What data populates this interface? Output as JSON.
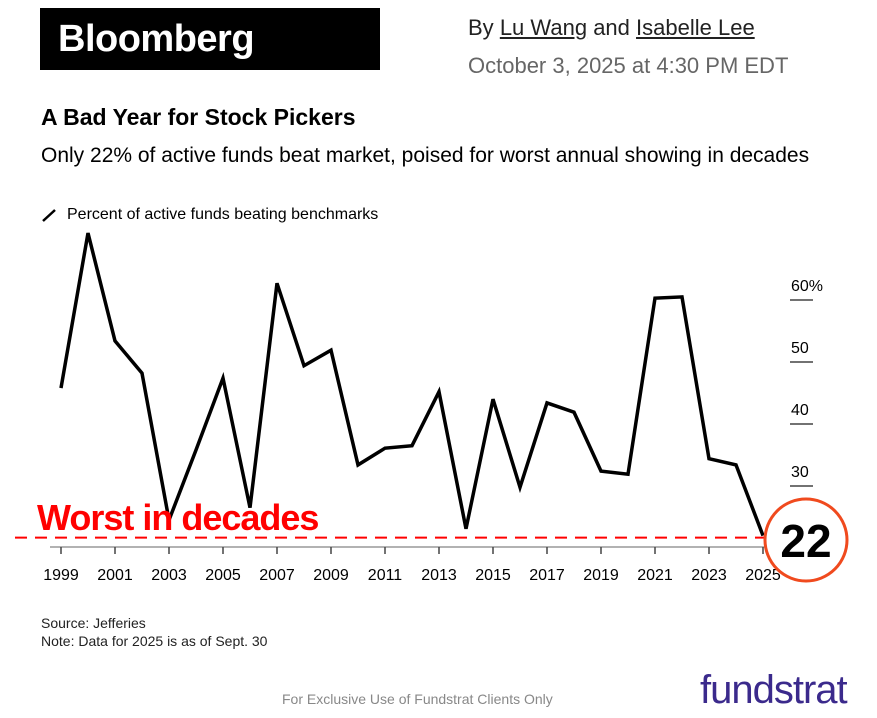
{
  "header": {
    "logo": "Bloomberg",
    "by": "By",
    "author1": "Lu Wang",
    "and": "and",
    "author2": "Isabelle Lee",
    "date": "October 3, 2025 at 4:30 PM EDT"
  },
  "chart_data": {
    "type": "line",
    "title": "A Bad Year for Stock Pickers",
    "subtitle": "Only 22% of active funds beat market, poised for worst annual showing in decades",
    "legend": "Percent of active funds beating benchmarks",
    "x": [
      1999,
      2000,
      2001,
      2002,
      2003,
      2004,
      2005,
      2006,
      2007,
      2008,
      2009,
      2010,
      2011,
      2012,
      2013,
      2014,
      2015,
      2016,
      2017,
      2018,
      2019,
      2020,
      2021,
      2022,
      2023,
      2024,
      2025
    ],
    "values": [
      45.8,
      70.8,
      53.4,
      48.2,
      24.5,
      35.8,
      47.4,
      26.5,
      62.7,
      49.4,
      51.9,
      33.4,
      36.1,
      36.5,
      45.2,
      23.1,
      44.0,
      29.8,
      43.4,
      41.9,
      32.4,
      31.9,
      60.3,
      60.5,
      34.4,
      33.4,
      22
    ],
    "xticks": [
      "1999",
      "2001",
      "2003",
      "2005",
      "2007",
      "2009",
      "2011",
      "2013",
      "2015",
      "2017",
      "2019",
      "2021",
      "2023",
      "2025"
    ],
    "yticks": [
      "60%",
      "50",
      "40",
      "30"
    ],
    "ytick_values": [
      60,
      50,
      40,
      30
    ],
    "ylim": [
      20,
      72
    ],
    "grid": false,
    "line_color": "#000000",
    "annotation": {
      "text": "Worst in decades",
      "value": 22,
      "callout": "22",
      "color": "#ff0000",
      "circle_color": "#f04a1e"
    }
  },
  "source": "Source: Jefferies",
  "note": "Note: Data for 2025 is as of Sept. 30",
  "footer": "For Exclusive Use of Fundstrat Clients Only",
  "watermark": "fundstrat"
}
